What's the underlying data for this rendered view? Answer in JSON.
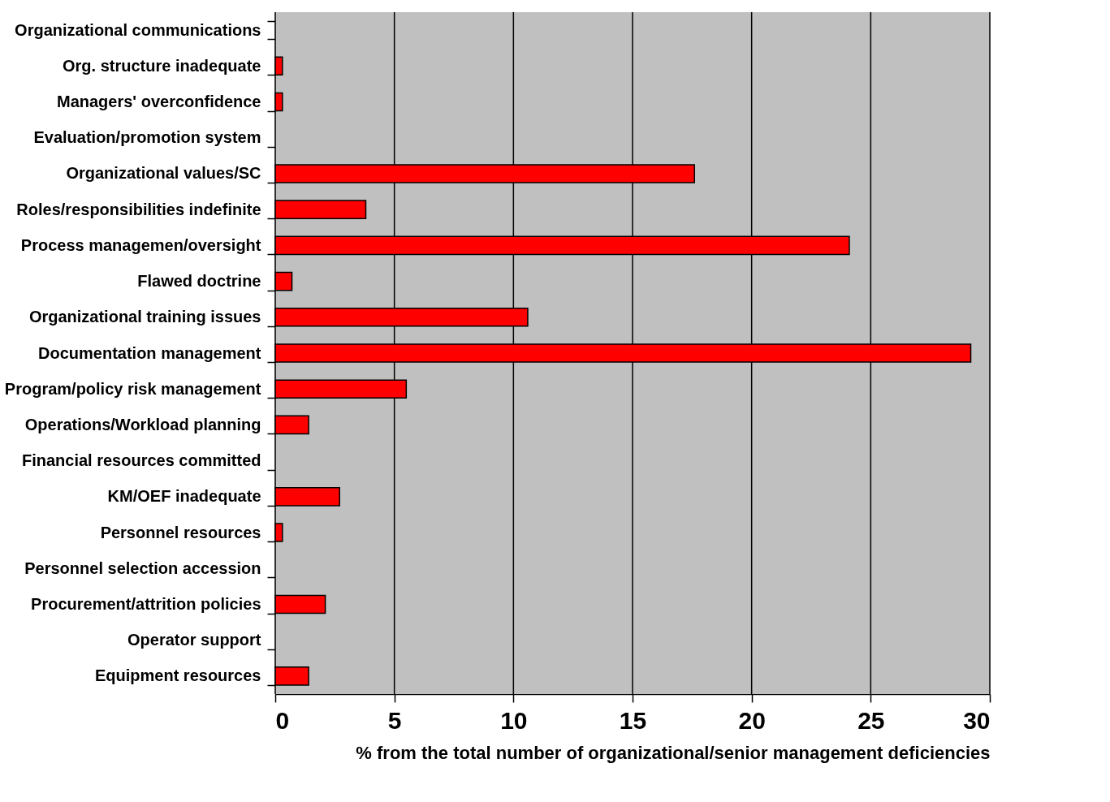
{
  "chart_data": {
    "type": "bar",
    "orientation": "horizontal",
    "xlabel": "% from the total number of organizational/senior management deficiencies",
    "categories": [
      "Organizational communications",
      "Org. structure inadequate",
      "Managers' overconfidence",
      "Evaluation/promotion system",
      "Organizational values/SC",
      "Roles/responsibilities indefinite",
      "Process managemen/oversight",
      "Flawed doctrine",
      "Organizational training issues",
      "Documentation management",
      "Program/policy risk management",
      "Operations/Workload planning",
      "Financial resources committed",
      "KM/OEF inadequate",
      "Personnel resources",
      "Personnel selection accession",
      "Procurement/attrition policies",
      "Operator support",
      "Equipment resources"
    ],
    "values": [
      null,
      0.3,
      0.3,
      null,
      17.6,
      3.8,
      24.1,
      0.7,
      10.6,
      29.2,
      5.5,
      1.4,
      null,
      2.7,
      0.3,
      null,
      2.1,
      null,
      1.4
    ],
    "color": "#ff0000",
    "xlim": [
      0,
      30
    ],
    "xticks": [
      0,
      5,
      10,
      15,
      20,
      25,
      30
    ],
    "grid": "x"
  }
}
